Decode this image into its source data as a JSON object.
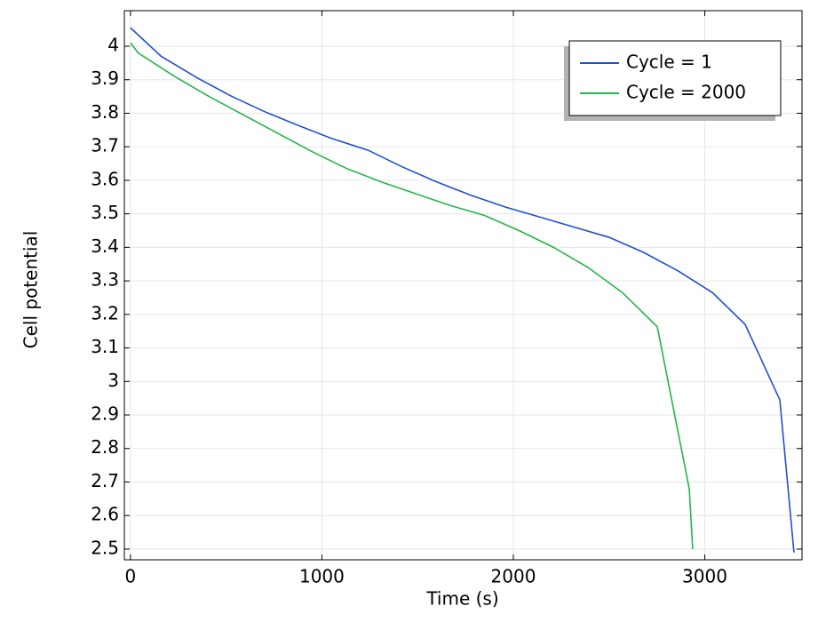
{
  "chart_data": {
    "type": "line",
    "x_label": "Time (s)",
    "y_label": "Cell potential",
    "xlim": [
      -32,
      3508
    ],
    "ylim": [
      2.468,
      4.106
    ],
    "xticks": [
      0,
      1000,
      2000,
      3000
    ],
    "yticks": [
      2.5,
      2.6,
      2.7,
      2.8,
      2.9,
      3,
      3.1,
      3.2,
      3.3,
      3.4,
      3.5,
      3.6,
      3.7,
      3.8,
      3.9,
      4
    ],
    "grid": true,
    "legend": "upper right",
    "series": [
      {
        "name": "Cycle = 1",
        "color": "#1f4fd8",
        "x": [
          0,
          160,
          350,
          530,
          700,
          870,
          1050,
          1240,
          1420,
          1600,
          1780,
          1960,
          2140,
          2320,
          2500,
          2680,
          2860,
          3040,
          3211,
          3392,
          3466
        ],
        "values": [
          4.055,
          3.97,
          3.905,
          3.85,
          3.805,
          3.765,
          3.725,
          3.69,
          3.64,
          3.595,
          3.555,
          3.52,
          3.49,
          3.46,
          3.43,
          3.385,
          3.33,
          3.265,
          3.17,
          2.945,
          2.49
        ]
      },
      {
        "name": "Cycle = 2000",
        "color": "#22b54a",
        "x": [
          0,
          40,
          230,
          410,
          590,
          770,
          950,
          1130,
          1310,
          1490,
          1670,
          1850,
          2030,
          2210,
          2390,
          2570,
          2752,
          2919,
          2937
        ],
        "values": [
          4.01,
          3.98,
          3.91,
          3.85,
          3.795,
          3.74,
          3.685,
          3.635,
          3.595,
          3.56,
          3.525,
          3.495,
          3.45,
          3.4,
          3.34,
          3.265,
          3.163,
          2.68,
          2.5
        ]
      }
    ]
  }
}
